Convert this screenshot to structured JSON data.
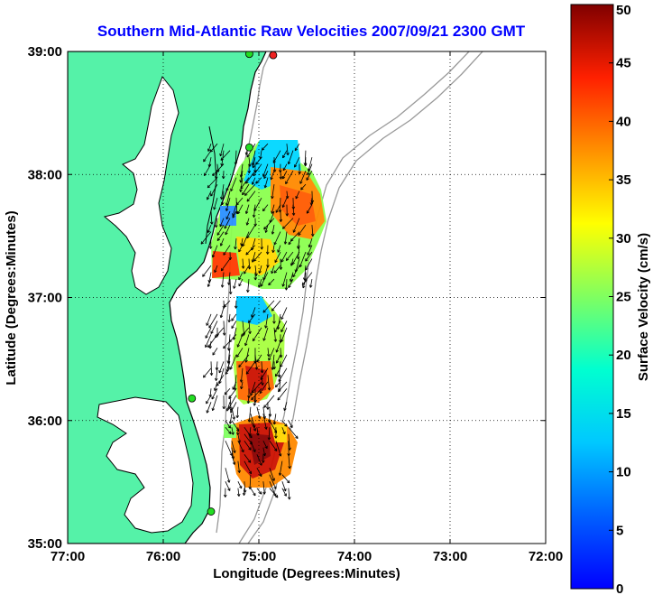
{
  "chart_data": {
    "type": "heatmap",
    "title": "Southern Mid-Atlantic Raw Velocities 2007/09/21 2300 GMT",
    "xlabel": "Longitude (Degrees:Minutes)",
    "ylabel": "Latitude (Degrees:Minutes)",
    "xlim": [
      -77,
      -72
    ],
    "ylim": [
      35,
      39
    ],
    "xticks": [
      -77,
      -76,
      -75,
      -74,
      -73,
      -72
    ],
    "xtick_labels": [
      "77:00",
      "76:00",
      "75:00",
      "74:00",
      "73:00",
      "72:00"
    ],
    "yticks": [
      35,
      36,
      37,
      38,
      39
    ],
    "ytick_labels": [
      "35:00",
      "36:00",
      "37:00",
      "38:00",
      "39:00"
    ],
    "grid": true,
    "colorbar": {
      "label": "Surface Velocity (cm/s)",
      "range": [
        0,
        50
      ],
      "ticks": [
        0,
        5,
        10,
        15,
        20,
        25,
        30,
        35,
        40,
        45,
        50
      ],
      "colormap": "jet"
    },
    "colors": {
      "title": "#0000ff",
      "land": "#55f2a8",
      "coast": "#000000",
      "bathymetry": "#999999",
      "station": "#22dd22",
      "station_alt": "#ee2222"
    },
    "stations": [
      {
        "lon": -75.1,
        "lat": 38.98,
        "color": "station"
      },
      {
        "lon": -74.85,
        "lat": 38.97,
        "color": "station_alt"
      },
      {
        "lon": -75.1,
        "lat": 38.22,
        "color": "station"
      },
      {
        "lon": -75.7,
        "lat": 36.18,
        "color": "station"
      },
      {
        "lon": -75.5,
        "lat": 35.26,
        "color": "station"
      }
    ],
    "regions": [
      {
        "lonRange": [
          -75.5,
          -74.4
        ],
        "latRange": [
          37.15,
          38.3
        ],
        "value": 18
      },
      {
        "lonRange": [
          -75.5,
          -74.7
        ],
        "latRange": [
          36.15,
          37.0
        ],
        "value": 20
      },
      {
        "lonRange": [
          -75.35,
          -74.65
        ],
        "latRange": [
          35.45,
          36.15
        ],
        "value": 38
      }
    ]
  }
}
